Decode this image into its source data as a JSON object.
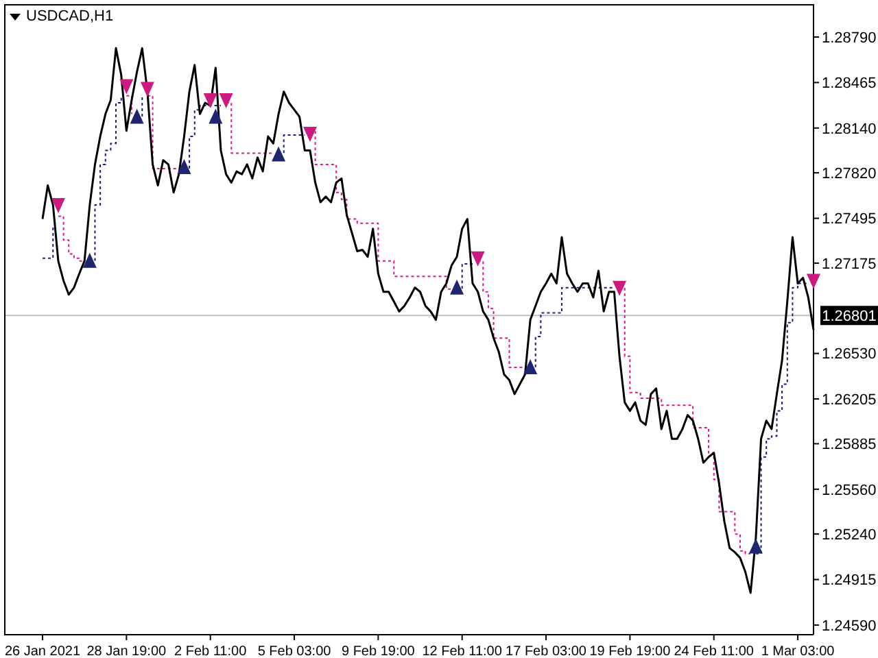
{
  "chart_data": {
    "type": "line",
    "title": "USDCAD,H1",
    "categories": [
      "26 Jan 2021",
      null,
      null,
      null,
      null,
      null,
      null,
      null,
      null,
      null,
      null,
      null,
      null,
      null,
      null,
      null,
      "28 Jan 19:00",
      null,
      null,
      null,
      null,
      null,
      null,
      null,
      null,
      null,
      null,
      null,
      null,
      null,
      null,
      null,
      "2 Feb 11:00",
      null,
      null,
      null,
      null,
      null,
      null,
      null,
      null,
      null,
      null,
      null,
      null,
      null,
      null,
      null,
      "5 Feb 03:00",
      null,
      null,
      null,
      null,
      null,
      null,
      null,
      null,
      null,
      null,
      null,
      null,
      null,
      null,
      null,
      "9 Feb 19:00",
      null,
      null,
      null,
      null,
      null,
      null,
      null,
      null,
      null,
      null,
      null,
      null,
      null,
      null,
      null,
      "12 Feb 11:00",
      null,
      null,
      null,
      null,
      null,
      null,
      null,
      null,
      null,
      null,
      null,
      null,
      null,
      null,
      null,
      "17 Feb 03:00",
      null,
      null,
      null,
      null,
      null,
      null,
      null,
      null,
      null,
      null,
      null,
      null,
      null,
      null,
      null,
      "19 Feb 19:00",
      null,
      null,
      null,
      null,
      null,
      null,
      null,
      null,
      null,
      null,
      null,
      null,
      null,
      null,
      null,
      "24 Feb 11:00",
      null,
      null,
      null,
      null,
      null,
      null,
      null,
      null,
      null,
      null,
      null,
      null,
      null,
      null,
      null,
      "1 Mar 03:00",
      null,
      null,
      null
    ],
    "series": [
      {
        "type": "step",
        "color": "#1a1a80",
        "line_style": "dotted",
        "values": [
          1.2721,
          1.2721,
          1.2744,
          null,
          null,
          null,
          null,
          null,
          null,
          1.2719,
          1.2759,
          1.2788,
          1.2798,
          1.2803,
          1.2832,
          1.2837,
          null,
          null,
          1.2822,
          1.2837,
          null,
          null,
          null,
          null,
          null,
          null,
          null,
          1.2785,
          1.2808,
          1.2827,
          1.283,
          1.283,
          1.283,
          1.283,
          1.283,
          null,
          null,
          null,
          null,
          null,
          null,
          null,
          null,
          null,
          null,
          1.2796,
          1.2809,
          1.2809,
          1.2809,
          1.2809,
          1.2809,
          null,
          null,
          null,
          null,
          null,
          null,
          null,
          null,
          null,
          null,
          null,
          null,
          null,
          null,
          null,
          null,
          null,
          null,
          null,
          null,
          null,
          null,
          null,
          null,
          null,
          null,
          null,
          null,
          1.2699,
          1.2717,
          1.2717,
          1.2717,
          null,
          null,
          null,
          null,
          null,
          null,
          null,
          null,
          null,
          null,
          1.2643,
          1.2665,
          1.2682,
          1.2682,
          1.2682,
          1.2682,
          1.27,
          1.27,
          1.27,
          1.27,
          1.27,
          1.27,
          1.27,
          1.27,
          1.27,
          1.27,
          1.27,
          null,
          null,
          null,
          null,
          null,
          null,
          null,
          null,
          null,
          null,
          null,
          null,
          null,
          null,
          null,
          null,
          null,
          null,
          null,
          null,
          null,
          null,
          null,
          null,
          null,
          null,
          1.251,
          1.2579,
          1.2592,
          1.2594,
          1.2612,
          1.2631,
          1.2675,
          1.27,
          1.2703,
          1.2703,
          1.2703,
          null
        ]
      },
      {
        "type": "step",
        "color": "#e0148c",
        "line_style": "dotted",
        "values": [
          null,
          null,
          null,
          1.2751,
          1.2734,
          1.2724,
          1.2721,
          1.2719,
          1.2719,
          null,
          null,
          null,
          null,
          null,
          null,
          null,
          1.2837,
          1.2824,
          null,
          null,
          1.2837,
          1.2785,
          1.2785,
          1.2785,
          1.2785,
          1.2785,
          1.2785,
          null,
          null,
          null,
          null,
          null,
          null,
          null,
          null,
          1.2832,
          1.2796,
          1.2796,
          1.2796,
          1.2796,
          1.2796,
          1.2796,
          1.2796,
          1.2796,
          1.2796,
          null,
          null,
          null,
          null,
          null,
          null,
          1.2812,
          1.2788,
          1.2788,
          1.2788,
          1.2788,
          1.2768,
          1.2763,
          1.2749,
          1.2749,
          1.2746,
          1.2746,
          1.2746,
          1.2746,
          1.2719,
          1.2719,
          1.2719,
          1.2708,
          1.2708,
          1.2708,
          1.2708,
          1.2708,
          1.2708,
          1.2708,
          1.2708,
          1.2708,
          1.2708,
          1.2699,
          1.2699,
          null,
          null,
          null,
          null,
          1.2719,
          1.2697,
          1.2685,
          1.2664,
          1.2664,
          1.2664,
          1.2643,
          1.2643,
          1.2643,
          1.2643,
          null,
          null,
          null,
          null,
          null,
          null,
          null,
          null,
          null,
          null,
          null,
          null,
          null,
          null,
          null,
          null,
          null,
          1.27,
          1.2651,
          1.2625,
          1.2625,
          1.2621,
          1.2621,
          1.2621,
          1.2621,
          1.2616,
          1.2616,
          1.2616,
          1.2616,
          1.2616,
          1.2616,
          1.26,
          1.26,
          1.26,
          1.2582,
          1.2563,
          1.254,
          1.254,
          1.254,
          1.2524,
          1.2512,
          1.251,
          1.251,
          null,
          null,
          null,
          null,
          null,
          null,
          null,
          null,
          null,
          null,
          null,
          null
        ]
      },
      {
        "color": "#000000",
        "line_style": "solid",
        "values": [
          1.2749,
          1.2773,
          1.2759,
          1.2719,
          1.2705,
          1.2695,
          1.27,
          1.271,
          1.2719,
          1.2759,
          1.2788,
          1.2808,
          1.2824,
          1.2834,
          1.2871,
          1.2852,
          1.2812,
          1.2834,
          1.2854,
          1.2871,
          1.284,
          1.2788,
          1.2773,
          1.2791,
          1.2788,
          1.2768,
          1.2781,
          1.2808,
          1.284,
          1.2859,
          1.2824,
          1.2832,
          1.283,
          1.2857,
          1.2798,
          1.2781,
          1.2775,
          1.2783,
          1.2781,
          1.2788,
          1.2778,
          1.2793,
          1.2783,
          1.2808,
          1.2803,
          1.2824,
          1.284,
          1.2832,
          1.2827,
          1.2822,
          1.2798,
          1.2798,
          1.2775,
          1.2761,
          1.2765,
          1.2761,
          1.2775,
          1.2778,
          1.2752,
          1.2739,
          1.2726,
          1.2727,
          1.2722,
          1.2742,
          1.271,
          1.2697,
          1.2697,
          1.269,
          1.2683,
          1.2687,
          1.2693,
          1.27,
          1.2697,
          1.2687,
          1.2683,
          1.2677,
          1.2697,
          1.2703,
          1.2716,
          1.2722,
          1.2742,
          1.2749,
          1.2703,
          1.2697,
          1.2683,
          1.2677,
          1.2664,
          1.2654,
          1.2638,
          1.2634,
          1.2624,
          1.2631,
          1.2638,
          1.2677,
          1.2687,
          1.2697,
          1.2703,
          1.271,
          1.2703,
          1.2736,
          1.271,
          1.2703,
          1.2697,
          1.2703,
          1.2703,
          1.2693,
          1.2712,
          1.2683,
          1.2697,
          1.2697,
          1.2651,
          1.2618,
          1.2612,
          1.2618,
          1.2605,
          1.2602,
          1.2624,
          1.2628,
          1.2599,
          1.2612,
          1.2592,
          1.2592,
          1.2599,
          1.2609,
          1.2605,
          1.2592,
          1.2575,
          1.2579,
          1.2582,
          1.256,
          1.2533,
          1.2514,
          1.2511,
          1.2507,
          1.2497,
          1.2482,
          1.2521,
          1.2592,
          1.2605,
          1.2599,
          1.2624,
          1.2648,
          1.269,
          1.2736,
          1.2703,
          1.2707,
          1.2693,
          1.267
        ]
      },
      {
        "type": "scatter",
        "color": "#cc1a80",
        "marker": "triangle",
        "values": [
          null,
          null,
          null,
          1.2759,
          null,
          null,
          null,
          null,
          null,
          null,
          null,
          null,
          null,
          null,
          null,
          null,
          1.2844,
          null,
          null,
          null,
          1.2842,
          null,
          null,
          null,
          null,
          null,
          null,
          null,
          null,
          null,
          null,
          null,
          1.2834,
          null,
          null,
          1.2834,
          null,
          null,
          null,
          null,
          null,
          null,
          null,
          null,
          null,
          null,
          null,
          null,
          null,
          null,
          null,
          1.281,
          null,
          null,
          null,
          null,
          null,
          null,
          null,
          null,
          null,
          null,
          null,
          null,
          null,
          null,
          null,
          null,
          null,
          null,
          null,
          null,
          null,
          null,
          null,
          null,
          null,
          null,
          null,
          null,
          null,
          null,
          null,
          1.2721,
          null,
          null,
          null,
          null,
          null,
          null,
          null,
          null,
          null,
          null,
          null,
          null,
          null,
          null,
          null,
          null,
          null,
          null,
          null,
          null,
          null,
          null,
          null,
          null,
          null,
          null,
          1.27,
          null,
          null,
          null,
          null,
          null,
          null,
          null,
          null,
          null,
          null,
          null,
          null,
          null,
          null,
          null,
          null,
          null,
          null,
          null,
          null,
          null,
          null,
          null,
          null,
          null,
          null,
          null,
          null,
          null,
          null,
          null,
          null,
          null,
          null,
          null,
          null,
          1.2705
        ]
      },
      {
        "type": "scatter",
        "color": "#1f2570",
        "marker": "triangle",
        "values": [
          null,
          null,
          null,
          null,
          null,
          null,
          null,
          null,
          null,
          1.2719,
          null,
          null,
          null,
          null,
          null,
          null,
          null,
          null,
          1.2822,
          null,
          null,
          null,
          null,
          null,
          null,
          null,
          null,
          1.2786,
          null,
          null,
          null,
          null,
          null,
          1.2822,
          null,
          null,
          null,
          null,
          null,
          null,
          null,
          null,
          null,
          null,
          null,
          1.2795,
          null,
          null,
          null,
          null,
          null,
          null,
          null,
          null,
          null,
          null,
          null,
          null,
          null,
          null,
          null,
          null,
          null,
          null,
          null,
          null,
          null,
          null,
          null,
          null,
          null,
          null,
          null,
          null,
          null,
          null,
          null,
          null,
          null,
          1.27,
          null,
          null,
          null,
          null,
          null,
          null,
          null,
          null,
          null,
          null,
          null,
          null,
          null,
          1.2643,
          null,
          null,
          null,
          null,
          null,
          null,
          null,
          null,
          null,
          null,
          null,
          null,
          null,
          null,
          null,
          null,
          null,
          null,
          null,
          null,
          null,
          null,
          null,
          null,
          null,
          null,
          null,
          null,
          null,
          null,
          null,
          null,
          null,
          null,
          null,
          null,
          null,
          null,
          null,
          null,
          null,
          null,
          1.2515,
          null,
          null,
          null,
          null,
          null,
          null,
          null,
          null,
          null,
          null,
          null
        ]
      }
    ],
    "ylim": [
      1.24521,
      1.29025
    ],
    "yticks": [
      {
        "value": 1.2879,
        "label": "1.28790"
      },
      {
        "value": 1.28465,
        "label": "1.28465"
      },
      {
        "value": 1.2814,
        "label": "1.28140"
      },
      {
        "value": 1.2782,
        "label": "1.27820"
      },
      {
        "value": 1.27495,
        "label": "1.27495"
      },
      {
        "value": 1.27175,
        "label": "1.27175"
      },
      {
        "value": 1.2653,
        "label": "1.26530"
      },
      {
        "value": 1.26205,
        "label": "1.26205"
      },
      {
        "value": 1.25885,
        "label": "1.25885"
      },
      {
        "value": 1.2556,
        "label": "1.25560"
      },
      {
        "value": 1.2524,
        "label": "1.25240"
      },
      {
        "value": 1.24915,
        "label": "1.24915"
      },
      {
        "value": 1.2459,
        "label": "1.24590"
      }
    ],
    "ref_lines": [
      {
        "axis": "y",
        "value": 1.26801,
        "label": "1.26801",
        "color": "#c0c0c0",
        "line_style": "solid"
      }
    ],
    "grid": false,
    "legend": false
  }
}
